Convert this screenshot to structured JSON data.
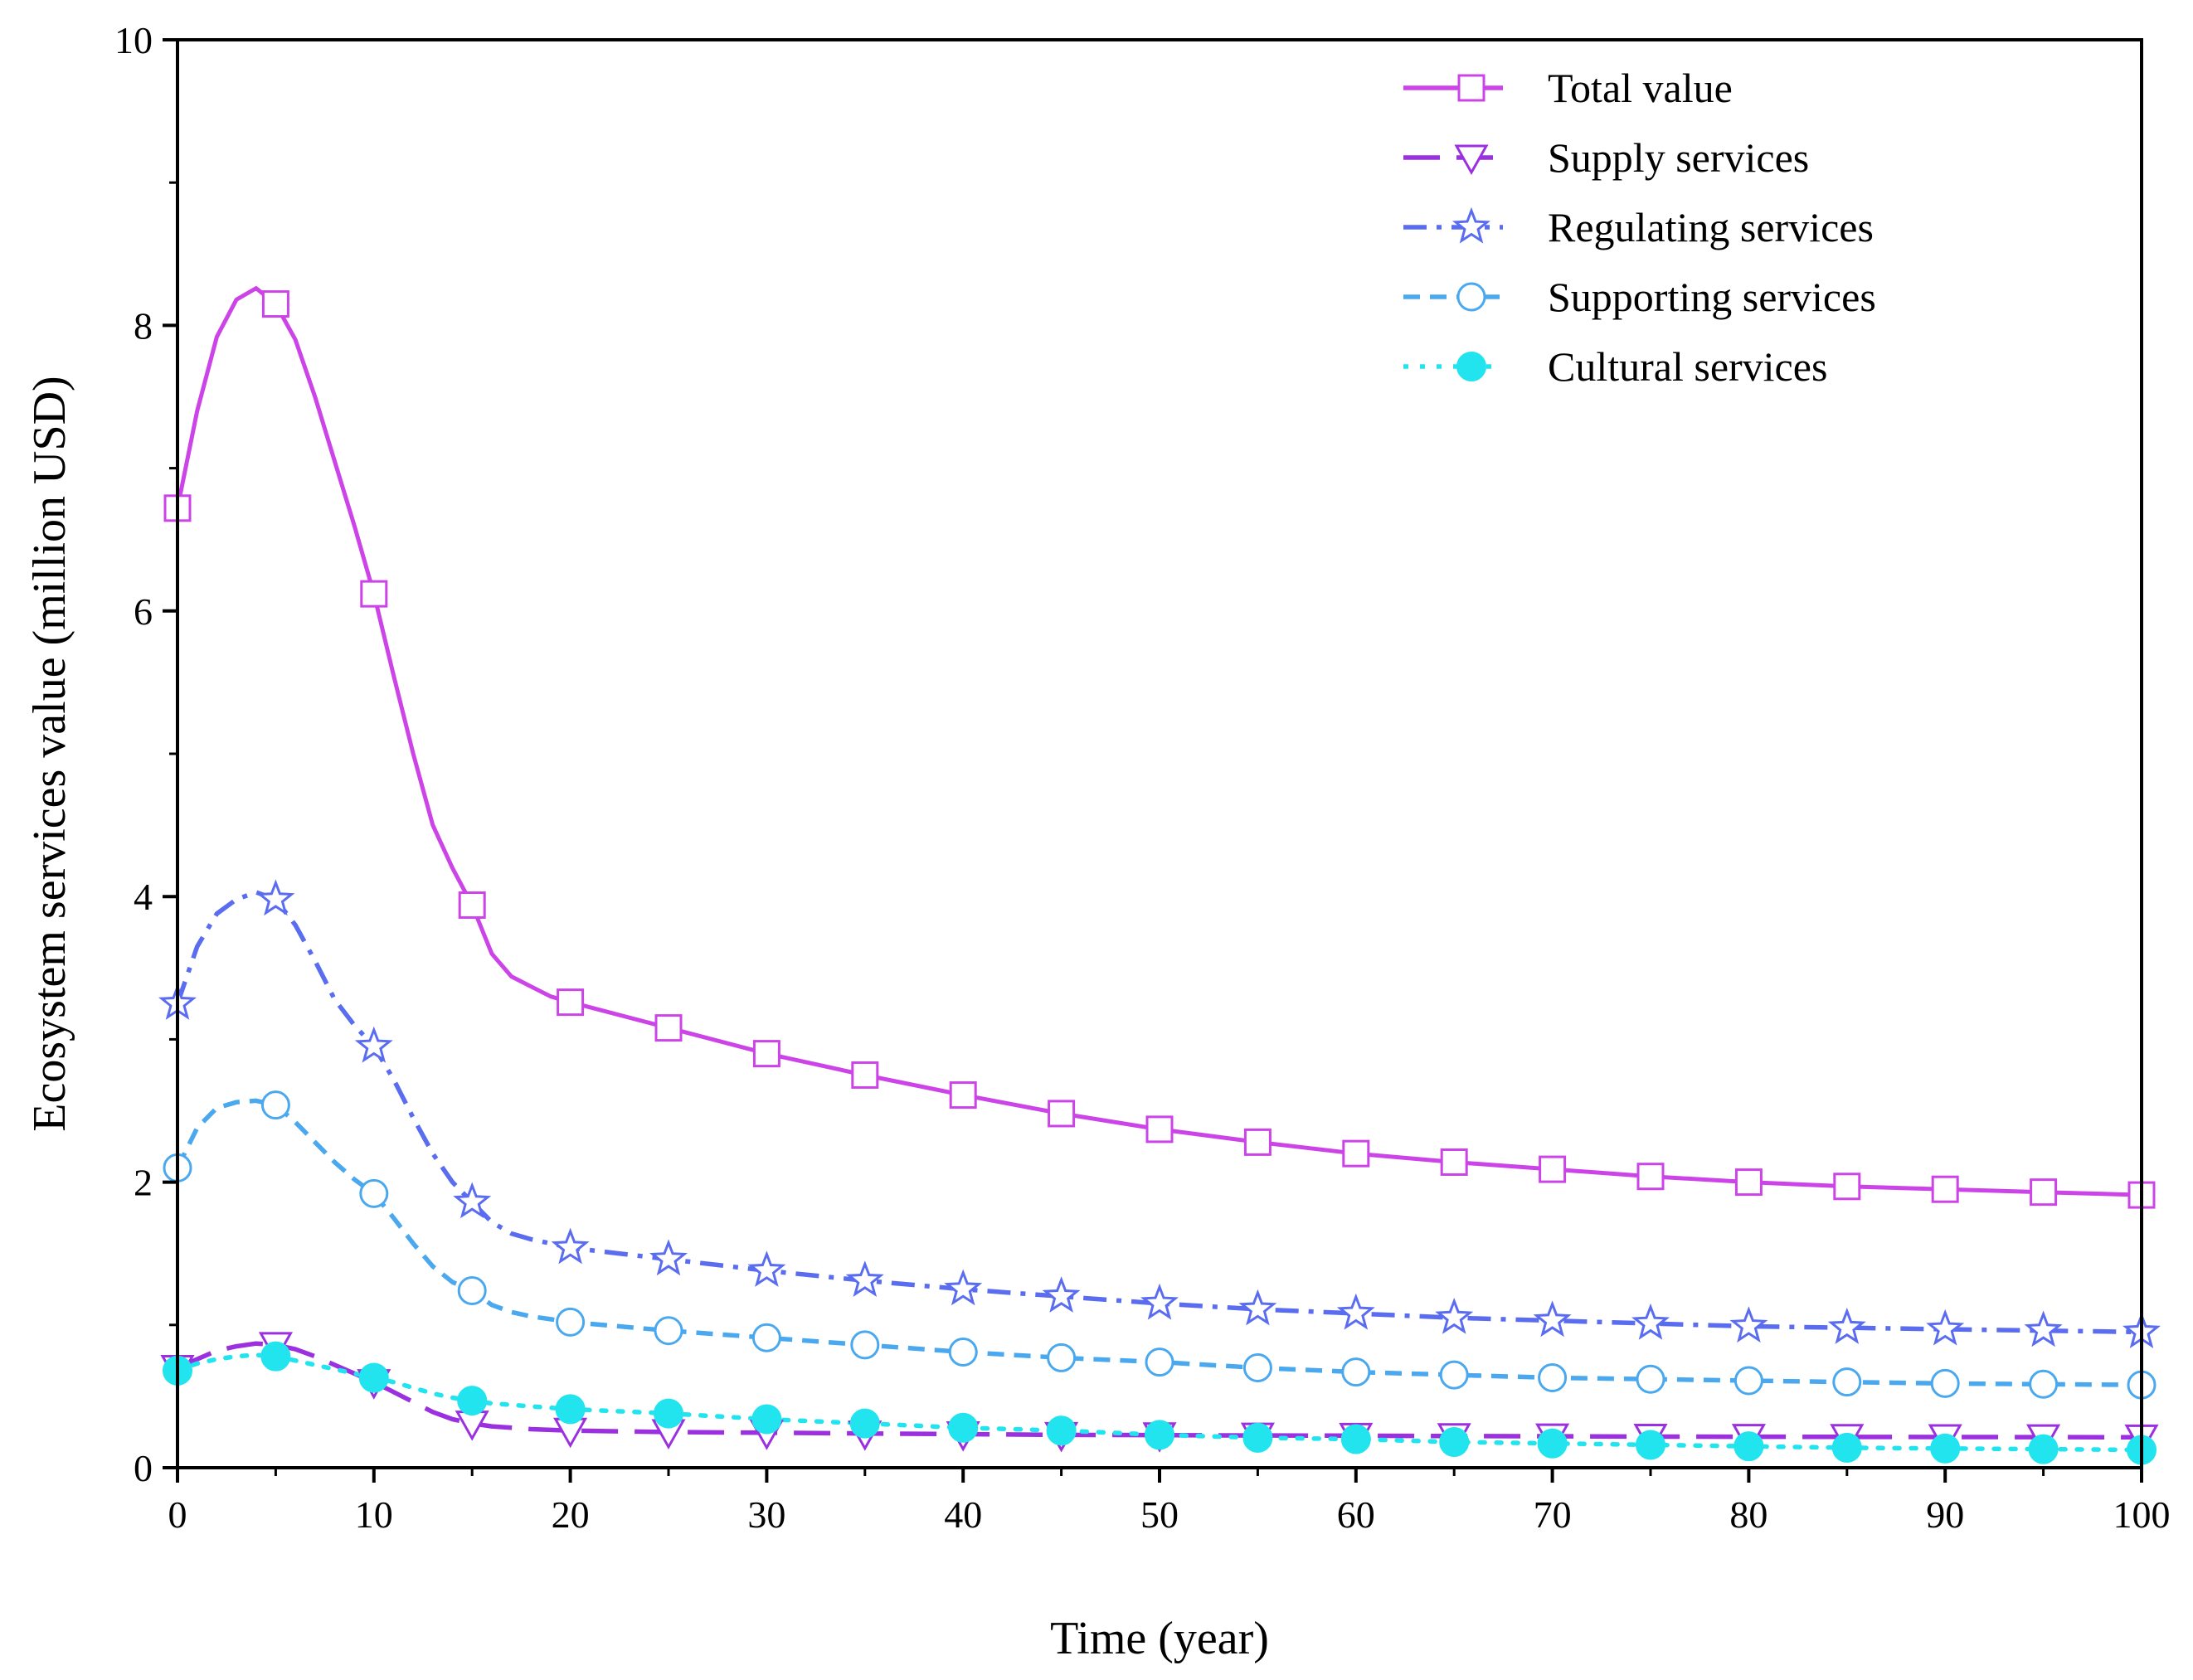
{
  "chart_data": {
    "type": "line",
    "title": "",
    "xlabel": "Time (year)",
    "ylabel": "Ecosystem services value (million USD)",
    "xlim": [
      0,
      100
    ],
    "ylim": [
      0,
      10
    ],
    "xticks": [
      0,
      10,
      20,
      30,
      40,
      50,
      60,
      70,
      80,
      90,
      100
    ],
    "yticks": [
      0,
      2,
      4,
      6,
      8,
      10
    ],
    "xtick_labels": [
      "0",
      "10",
      "20",
      "30",
      "40",
      "50",
      "60",
      "70",
      "80",
      "90",
      "100"
    ],
    "ytick_labels": [
      "0",
      "2",
      "4",
      "6",
      "8",
      "10"
    ],
    "grid": false,
    "legend_position": "top-right",
    "marker_x": [
      0,
      5,
      10,
      15,
      20,
      25,
      30,
      35,
      40,
      45,
      50,
      55,
      60,
      65,
      70,
      75,
      80,
      85,
      90,
      95,
      100
    ],
    "series": [
      {
        "name": "Total value",
        "color": "#CC44E8",
        "dash": "solid",
        "marker": "square",
        "curve_x": [
          0,
          1,
          2,
          3,
          4,
          5,
          6,
          7,
          8,
          9,
          10,
          11,
          12,
          13,
          14,
          15,
          16,
          17,
          18,
          19,
          20,
          25,
          30,
          35,
          40,
          45,
          50,
          55,
          60,
          65,
          70,
          75,
          80,
          85,
          90,
          95,
          100
        ],
        "curve_y": [
          6.72,
          7.4,
          7.92,
          8.18,
          8.26,
          8.15,
          7.9,
          7.5,
          7.05,
          6.6,
          6.12,
          5.55,
          5.0,
          4.5,
          4.2,
          3.94,
          3.6,
          3.44,
          3.37,
          3.3,
          3.26,
          3.08,
          2.9,
          2.75,
          2.61,
          2.48,
          2.37,
          2.28,
          2.2,
          2.14,
          2.09,
          2.04,
          2.0,
          1.97,
          1.95,
          1.93,
          1.91
        ],
        "marker_y": [
          6.72,
          8.15,
          6.12,
          3.94,
          3.26,
          3.08,
          2.9,
          2.75,
          2.61,
          2.48,
          2.37,
          2.28,
          2.2,
          2.14,
          2.09,
          2.04,
          2.0,
          1.97,
          1.95,
          1.93,
          1.91
        ]
      },
      {
        "name": "Supply services",
        "color": "#9B30E0",
        "dash": "long-dash",
        "marker": "triangle-down",
        "curve_x": [
          0,
          1,
          2,
          3,
          4,
          5,
          6,
          7,
          8,
          9,
          10,
          11,
          12,
          13,
          14,
          15,
          16,
          17,
          18,
          19,
          20,
          25,
          30,
          35,
          40,
          45,
          50,
          55,
          60,
          65,
          70,
          75,
          80,
          85,
          90,
          95,
          100
        ],
        "curve_y": [
          0.7,
          0.76,
          0.82,
          0.85,
          0.87,
          0.86,
          0.83,
          0.78,
          0.72,
          0.66,
          0.6,
          0.53,
          0.46,
          0.39,
          0.34,
          0.31,
          0.29,
          0.28,
          0.27,
          0.265,
          0.26,
          0.25,
          0.245,
          0.24,
          0.235,
          0.23,
          0.228,
          0.226,
          0.224,
          0.222,
          0.22,
          0.218,
          0.217,
          0.216,
          0.215,
          0.214,
          0.213
        ],
        "marker_y": [
          0.7,
          0.86,
          0.6,
          0.31,
          0.26,
          0.25,
          0.245,
          0.24,
          0.235,
          0.23,
          0.228,
          0.226,
          0.224,
          0.222,
          0.22,
          0.218,
          0.217,
          0.216,
          0.215,
          0.214,
          0.213
        ]
      },
      {
        "name": "Regulating services",
        "color": "#5A6CF0",
        "dash": "dash-dot",
        "marker": "star",
        "curve_x": [
          0,
          1,
          2,
          3,
          4,
          5,
          6,
          7,
          8,
          9,
          10,
          11,
          12,
          13,
          14,
          15,
          16,
          17,
          18,
          19,
          20,
          25,
          30,
          35,
          40,
          45,
          50,
          55,
          60,
          65,
          70,
          75,
          80,
          85,
          90,
          95,
          100
        ],
        "curve_y": [
          3.25,
          3.65,
          3.88,
          3.98,
          4.03,
          3.98,
          3.8,
          3.55,
          3.28,
          3.1,
          2.95,
          2.72,
          2.45,
          2.2,
          2.0,
          1.86,
          1.72,
          1.64,
          1.6,
          1.57,
          1.54,
          1.46,
          1.38,
          1.31,
          1.25,
          1.2,
          1.15,
          1.11,
          1.08,
          1.05,
          1.03,
          1.01,
          0.99,
          0.98,
          0.97,
          0.96,
          0.95
        ],
        "marker_y": [
          3.25,
          3.98,
          2.95,
          1.86,
          1.54,
          1.46,
          1.38,
          1.31,
          1.25,
          1.2,
          1.15,
          1.11,
          1.08,
          1.05,
          1.03,
          1.01,
          0.99,
          0.98,
          0.97,
          0.96,
          0.95
        ]
      },
      {
        "name": "Supporting services",
        "color": "#4AA8EE",
        "dash": "short-dash",
        "marker": "circle-open",
        "curve_x": [
          0,
          1,
          2,
          3,
          4,
          5,
          6,
          7,
          8,
          9,
          10,
          11,
          12,
          13,
          14,
          15,
          16,
          17,
          18,
          19,
          20,
          25,
          30,
          35,
          40,
          45,
          50,
          55,
          60,
          65,
          70,
          75,
          80,
          85,
          90,
          95,
          100
        ],
        "curve_y": [
          2.1,
          2.38,
          2.52,
          2.56,
          2.57,
          2.54,
          2.42,
          2.28,
          2.14,
          2.02,
          1.92,
          1.75,
          1.57,
          1.41,
          1.3,
          1.24,
          1.14,
          1.09,
          1.06,
          1.04,
          1.02,
          0.96,
          0.91,
          0.86,
          0.81,
          0.77,
          0.74,
          0.7,
          0.67,
          0.65,
          0.63,
          0.62,
          0.61,
          0.6,
          0.59,
          0.585,
          0.58
        ],
        "marker_y": [
          2.1,
          2.54,
          1.92,
          1.24,
          1.02,
          0.96,
          0.91,
          0.86,
          0.81,
          0.77,
          0.74,
          0.7,
          0.67,
          0.65,
          0.63,
          0.62,
          0.61,
          0.6,
          0.59,
          0.585,
          0.58
        ]
      },
      {
        "name": "Cultural services",
        "color": "#22E4EE",
        "dash": "dot",
        "marker": "circle-filled",
        "curve_x": [
          0,
          1,
          2,
          3,
          4,
          5,
          6,
          7,
          8,
          9,
          10,
          11,
          12,
          13,
          14,
          15,
          16,
          17,
          18,
          19,
          20,
          25,
          30,
          35,
          40,
          45,
          50,
          55,
          60,
          65,
          70,
          75,
          80,
          85,
          90,
          95,
          100
        ],
        "curve_y": [
          0.68,
          0.73,
          0.76,
          0.78,
          0.79,
          0.78,
          0.75,
          0.72,
          0.69,
          0.66,
          0.63,
          0.6,
          0.56,
          0.52,
          0.49,
          0.47,
          0.45,
          0.44,
          0.43,
          0.42,
          0.41,
          0.38,
          0.34,
          0.31,
          0.28,
          0.26,
          0.23,
          0.21,
          0.2,
          0.18,
          0.17,
          0.16,
          0.15,
          0.14,
          0.135,
          0.13,
          0.125
        ],
        "marker_y": [
          0.68,
          0.78,
          0.63,
          0.47,
          0.41,
          0.38,
          0.34,
          0.31,
          0.28,
          0.26,
          0.23,
          0.21,
          0.2,
          0.18,
          0.17,
          0.16,
          0.15,
          0.14,
          0.135,
          0.13,
          0.125
        ]
      }
    ]
  }
}
